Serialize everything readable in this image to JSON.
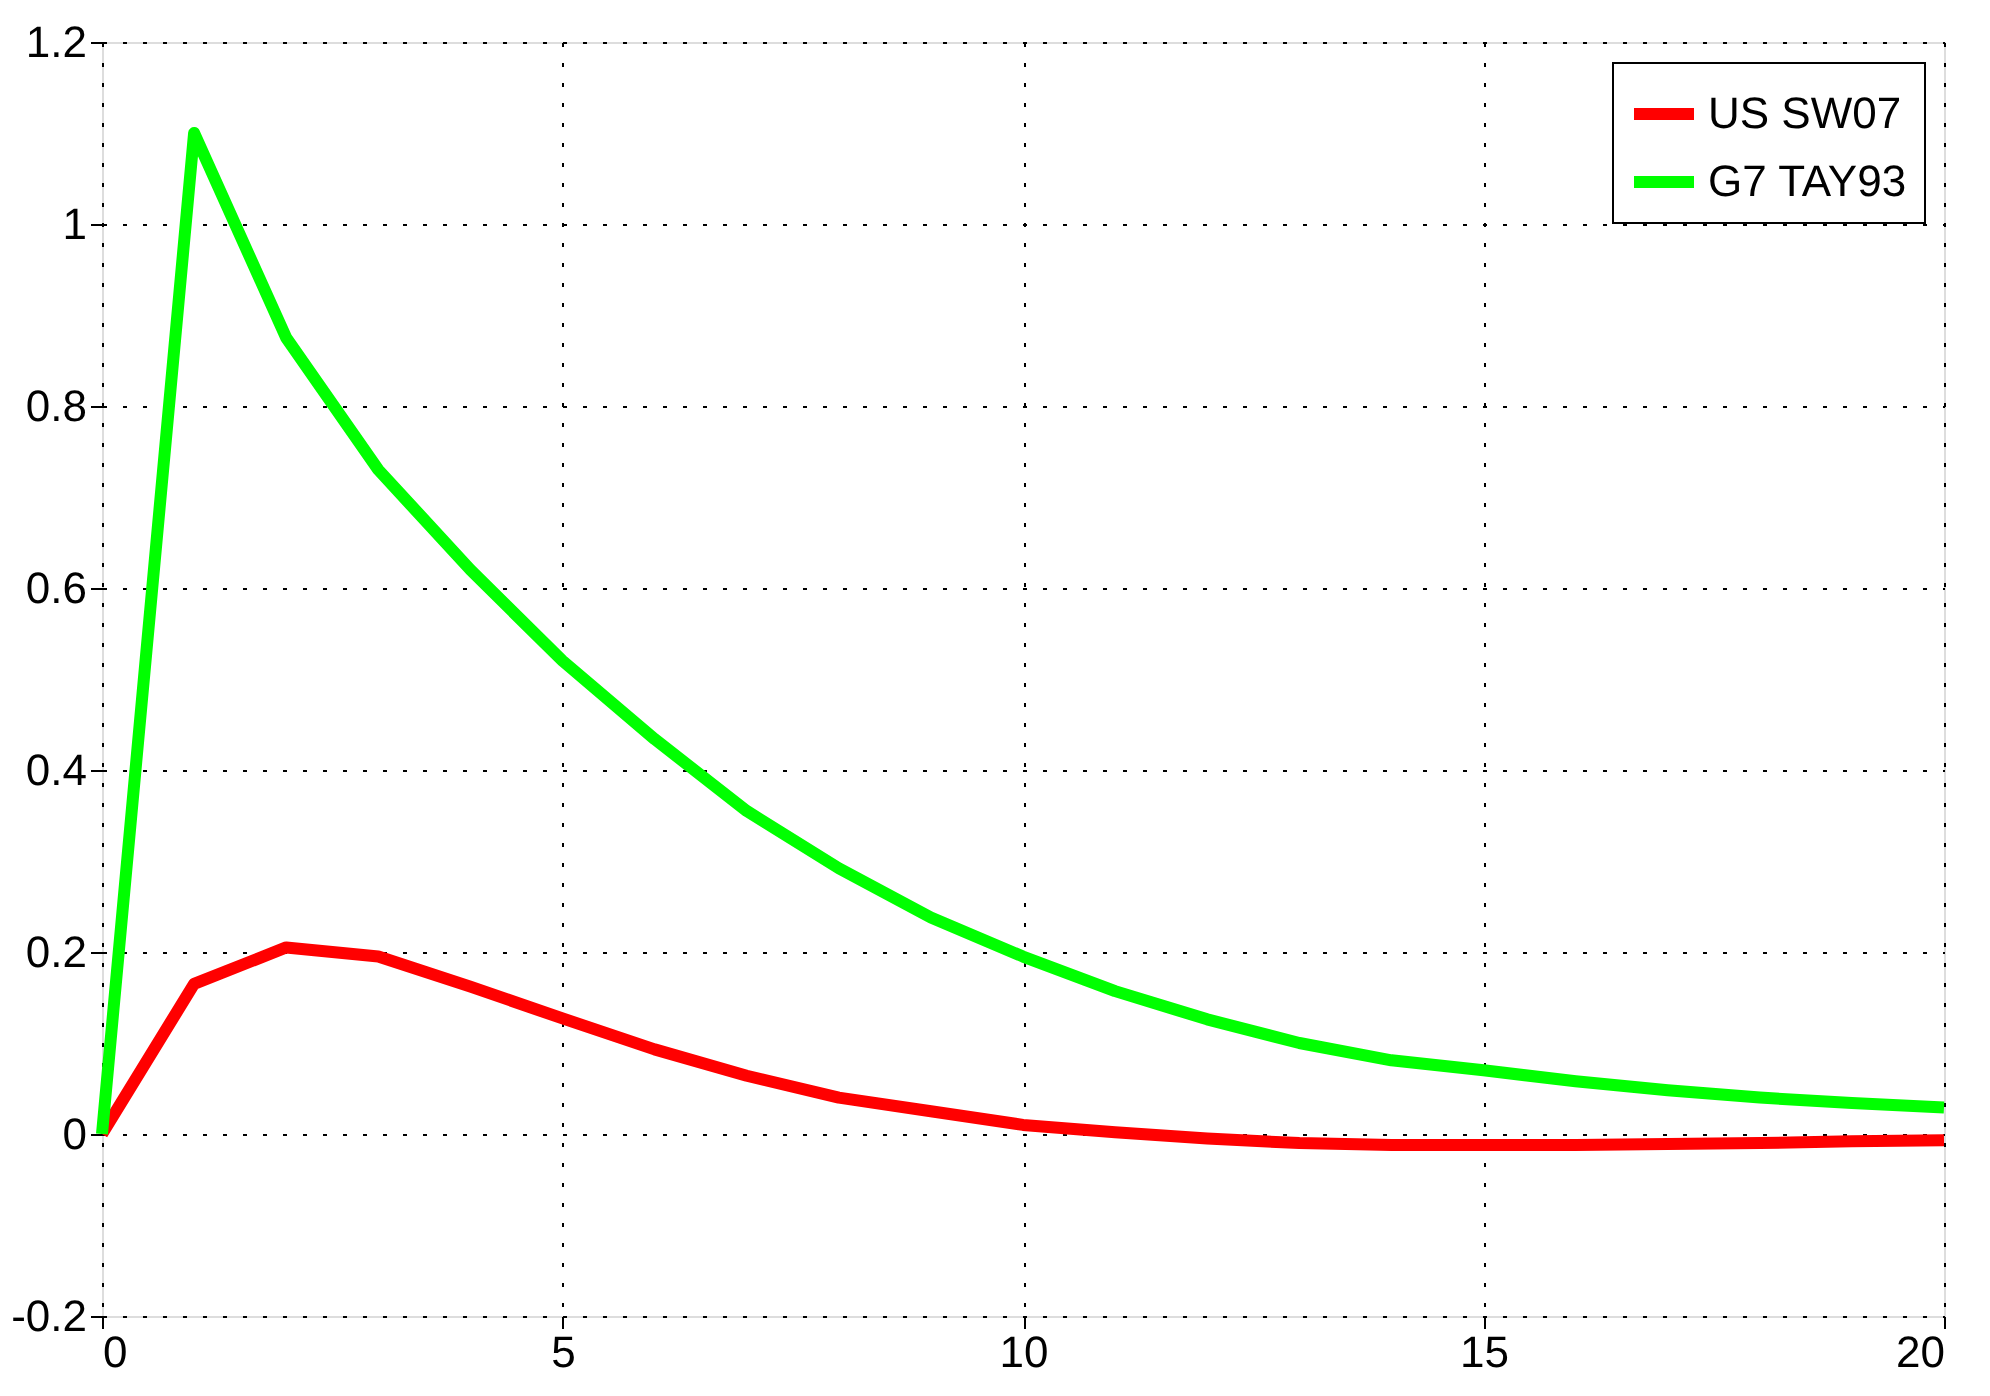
{
  "chart_data": {
    "type": "line",
    "x": [
      0,
      1,
      2,
      3,
      4,
      5,
      6,
      7,
      8,
      9,
      10,
      11,
      12,
      13,
      14,
      15,
      16,
      17,
      18,
      19,
      20
    ],
    "series": [
      {
        "name": "US SW07",
        "color": "#ff0000",
        "values": [
          0,
          0.165,
          0.205,
          0.195,
          0.162,
          0.127,
          0.093,
          0.064,
          0.04,
          0.025,
          0.01,
          0.002,
          -0.005,
          -0.01,
          -0.012,
          -0.012,
          -0.012,
          -0.011,
          -0.01,
          -0.008,
          -0.007
        ]
      },
      {
        "name": "G7 TAY93",
        "color": "#00ff00",
        "values": [
          0,
          1.1,
          0.875,
          0.73,
          0.62,
          0.52,
          0.434,
          0.355,
          0.292,
          0.238,
          0.195,
          0.157,
          0.126,
          0.1,
          0.081,
          0.07,
          0.058,
          0.048,
          0.04,
          0.034,
          0.029
        ]
      }
    ],
    "xlim": [
      0,
      20
    ],
    "xticks": [
      0,
      5,
      10,
      15,
      20
    ],
    "ylim": [
      -0.2,
      1.2
    ],
    "yticks": [
      -0.2,
      0,
      0.2,
      0.4,
      0.6,
      0.8,
      1,
      1.2
    ],
    "grid": true,
    "legend": "top right",
    "line_style": "solid",
    "marker": "none"
  }
}
